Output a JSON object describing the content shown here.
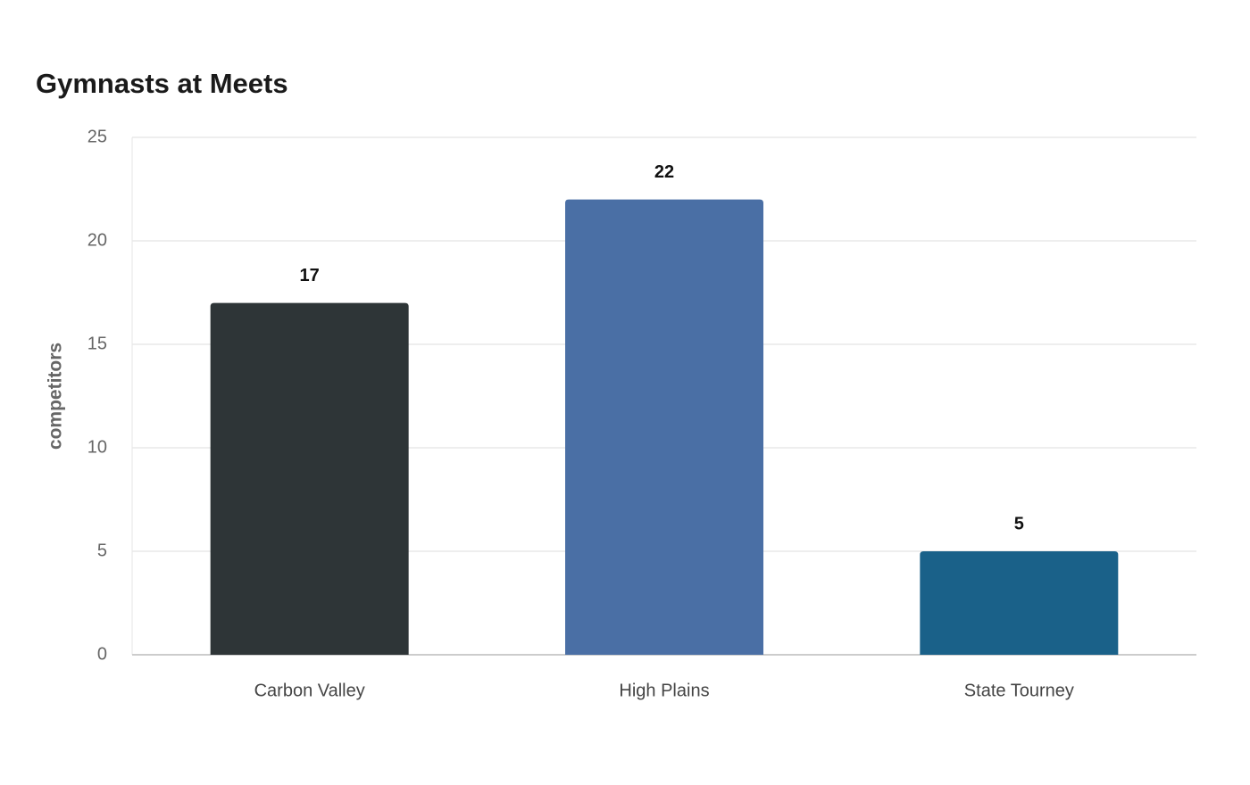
{
  "chart_data": {
    "type": "bar",
    "title": "Gymnasts at Meets",
    "y_label": "competitors",
    "categories": [
      "Carbon Valley",
      "High Plains",
      "State Tourney"
    ],
    "values": [
      17,
      22,
      5
    ],
    "colors": [
      "#2e3537",
      "#4a6fa5",
      "#1a6189"
    ],
    "ylim": [
      0,
      25
    ],
    "yticks": [
      0,
      5,
      10,
      15,
      20,
      25
    ],
    "grid": true
  }
}
